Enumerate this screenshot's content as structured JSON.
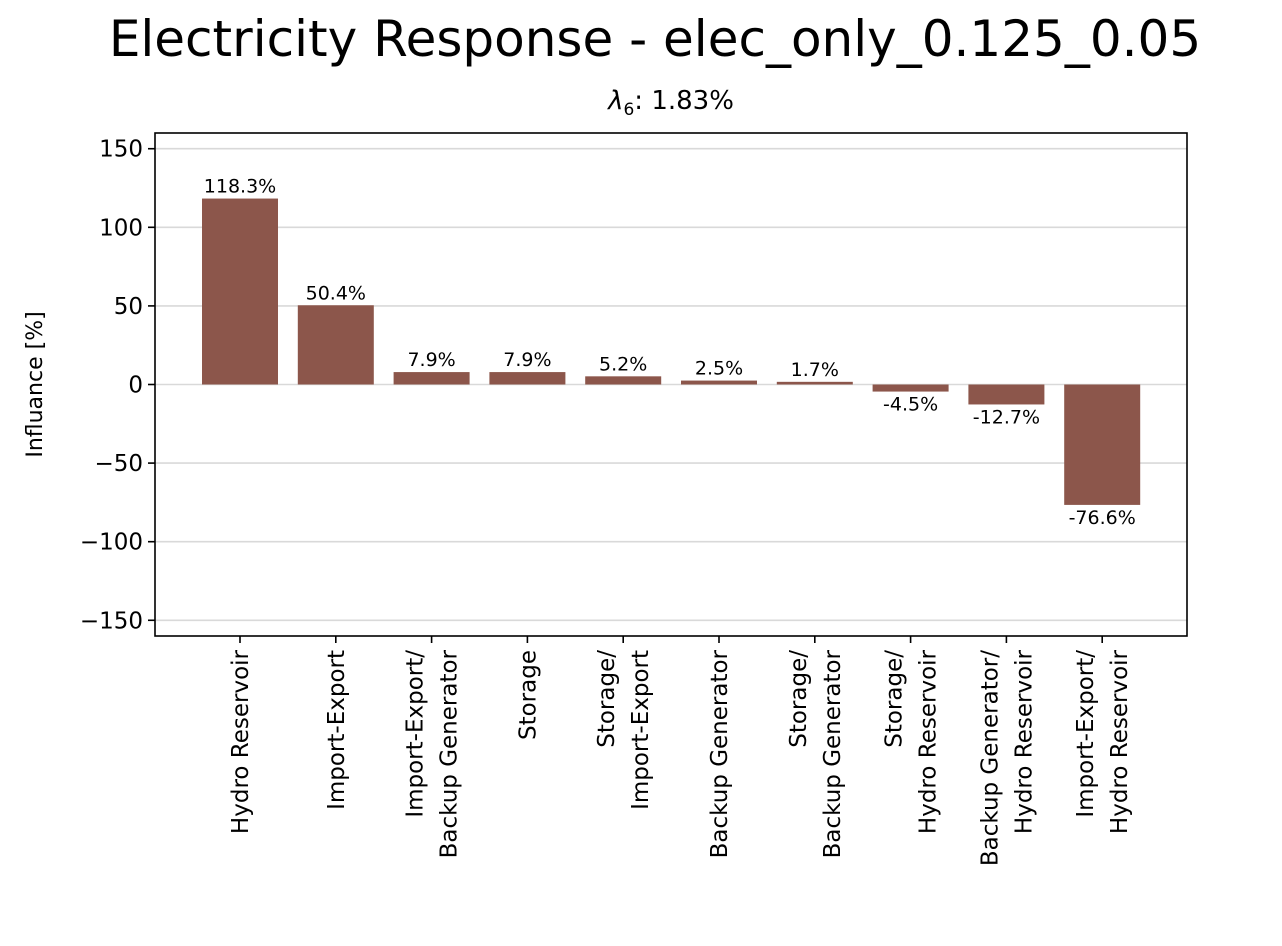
{
  "chart_data": {
    "type": "bar",
    "title": "Electricity Response - elec_only_0.125_0.05",
    "subtitle_symbol": "λ",
    "subtitle_subscript": "6",
    "subtitle_value": ": 1.83%",
    "xlabel": "",
    "ylabel": "Influance [%]",
    "ylim": [
      -160,
      160
    ],
    "yticks": [
      150,
      100,
      50,
      0,
      -50,
      -100,
      -150
    ],
    "ytick_labels": [
      "150",
      "100",
      "50",
      "0",
      "−50",
      "−100",
      "−150"
    ],
    "grid": "horizontal",
    "bar_color": "#8c564b",
    "categories": [
      [
        "Hydro Reservoir"
      ],
      [
        "Import-Export"
      ],
      [
        "Import-Export/",
        "Backup Generator"
      ],
      [
        "Storage"
      ],
      [
        "Storage/",
        "Import-Export"
      ],
      [
        "Backup Generator"
      ],
      [
        "Storage/",
        "Backup Generator"
      ],
      [
        "Storage/",
        "Hydro Reservoir"
      ],
      [
        "Backup Generator/",
        "Hydro Reservoir"
      ],
      [
        "Import-Export/",
        "Hydro Reservoir"
      ]
    ],
    "values": [
      118.3,
      50.4,
      7.9,
      7.9,
      5.2,
      2.5,
      1.7,
      -4.5,
      -12.7,
      -76.6
    ],
    "value_labels": [
      "118.3%",
      "50.4%",
      "7.9%",
      "7.9%",
      "5.2%",
      "2.5%",
      "1.7%",
      "-4.5%",
      "-12.7%",
      "-76.6%"
    ]
  }
}
